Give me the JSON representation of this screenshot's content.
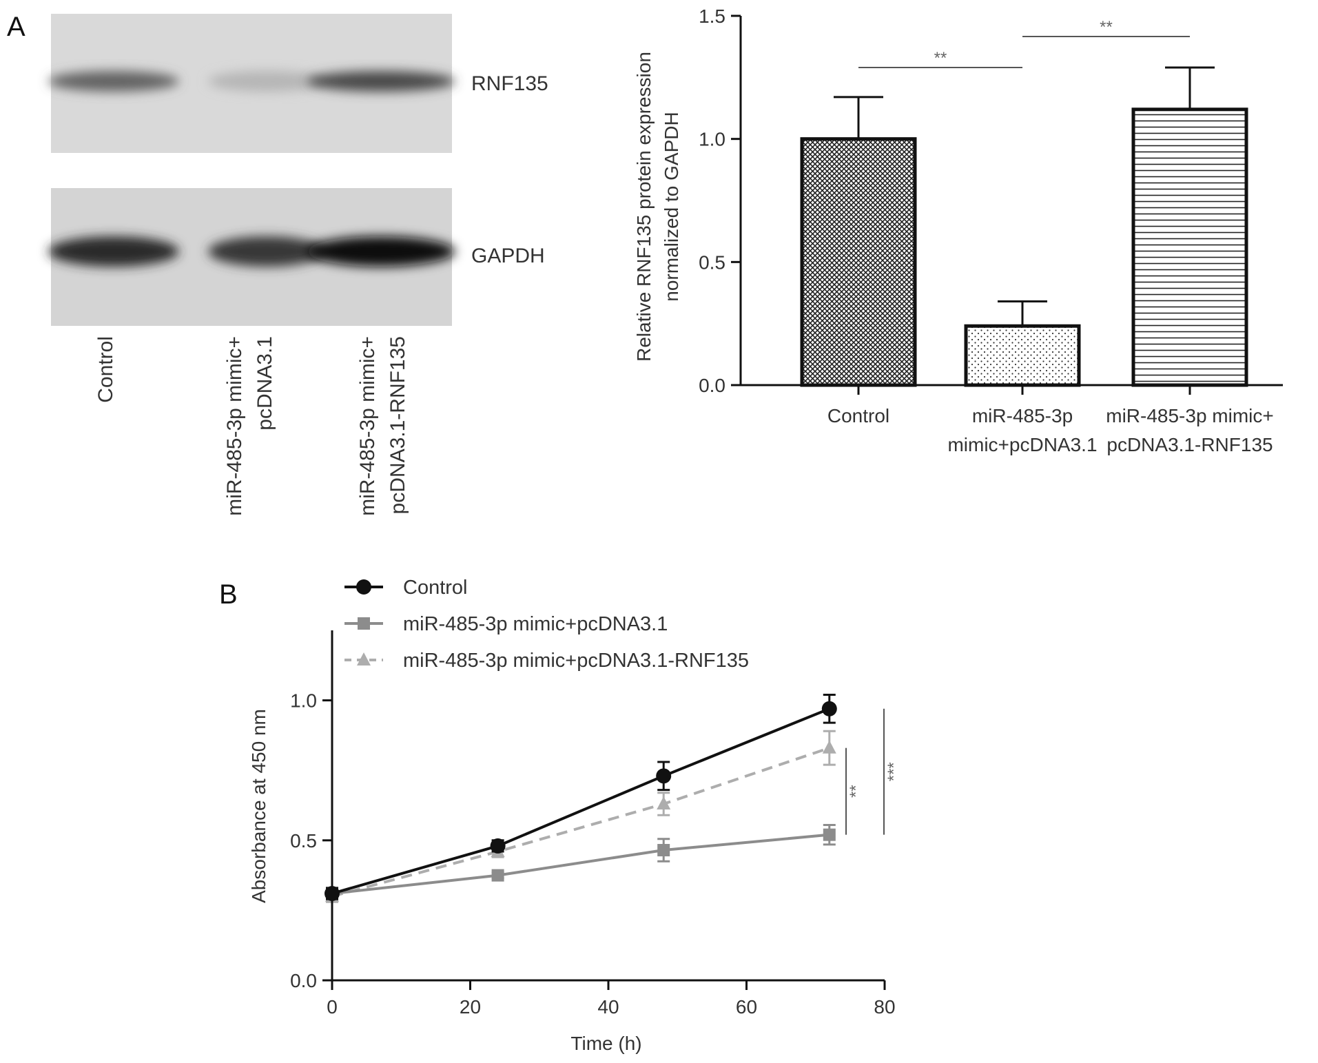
{
  "panels": {
    "a": {
      "label": "A"
    },
    "b": {
      "label": "B"
    }
  },
  "blot": {
    "bands": [
      "RNF135",
      "GAPDH"
    ],
    "lanes": [
      {
        "lines": [
          "Control"
        ]
      },
      {
        "lines": [
          "miR-485-3p mimic+",
          "pcDNA3.1"
        ]
      },
      {
        "lines": [
          "miR-485-3p mimic+",
          "pcDNA3.1-RNF135"
        ]
      }
    ],
    "intensity": {
      "RNF135": [
        0.55,
        0.12,
        0.7
      ],
      "GAPDH": [
        0.85,
        0.78,
        1.0
      ]
    }
  },
  "chart_data": [
    {
      "type": "bar",
      "categories": [
        {
          "lines": [
            "Control"
          ]
        },
        {
          "lines": [
            "miR-485-3p",
            "mimic+pcDNA3.1"
          ]
        },
        {
          "lines": [
            "miR-485-3p mimic+",
            "pcDNA3.1-RNF135"
          ]
        }
      ],
      "values": [
        1.0,
        0.24,
        1.12
      ],
      "errors": [
        0.17,
        0.1,
        0.17
      ],
      "patterns": [
        "crosshatch",
        "dots",
        "horizontal-lines"
      ],
      "ylabel_lines": [
        "Relative RNF135 protein expression",
        "normalized to GAPDH"
      ],
      "ylim": [
        0,
        1.5
      ],
      "yticks": [
        "0.0",
        "0.5",
        "1.0",
        "1.5"
      ],
      "significance": [
        {
          "from": 0,
          "to": 1,
          "label": "**"
        },
        {
          "from": 1,
          "to": 2,
          "label": "**"
        }
      ]
    },
    {
      "type": "line",
      "xlabel": "Time (h)",
      "ylabel": "Absorbance at 450 nm",
      "xlim": [
        0,
        80
      ],
      "ylim": [
        0,
        1.25
      ],
      "xticks": [
        "0",
        "20",
        "40",
        "60",
        "80"
      ],
      "yticks": [
        "0.0",
        "0.5",
        "1.0"
      ],
      "x": [
        0,
        24,
        48,
        72
      ],
      "series": [
        {
          "name": "Control",
          "values": [
            0.31,
            0.48,
            0.73,
            0.97
          ],
          "errors": [
            0.02,
            0.02,
            0.05,
            0.05
          ],
          "marker": "circle",
          "color": "#111111",
          "dash": "solid"
        },
        {
          "name": "miR-485-3p mimic+pcDNA3.1",
          "values": [
            0.31,
            0.375,
            0.465,
            0.52
          ],
          "errors": [
            0.02,
            0.01,
            0.04,
            0.035
          ],
          "marker": "square",
          "color": "#8c8c8c",
          "dash": "solid"
        },
        {
          "name": "miR-485-3p mimic+pcDNA3.1-RNF135",
          "values": [
            0.3,
            0.46,
            0.63,
            0.83
          ],
          "errors": [
            0.02,
            0.02,
            0.04,
            0.06
          ],
          "marker": "triangle",
          "color": "#adadad",
          "dash": "dashed"
        }
      ],
      "significance": [
        {
          "label": "**",
          "y_range": [
            0.52,
            0.83
          ]
        },
        {
          "label": "***",
          "y_range": [
            0.52,
            0.97
          ]
        }
      ]
    }
  ]
}
